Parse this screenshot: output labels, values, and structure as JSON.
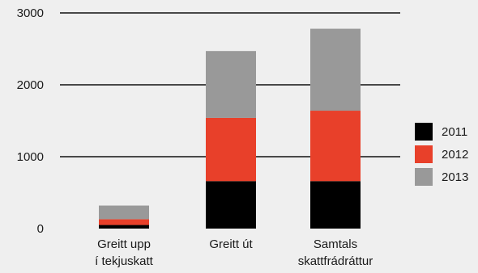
{
  "chart_data": {
    "type": "bar",
    "stacked": true,
    "categories": [
      [
        "Greitt upp",
        "í tekjuskatt"
      ],
      [
        "Greitt út"
      ],
      [
        "Samtals",
        "skattfrádráttur"
      ]
    ],
    "series": [
      {
        "name": "2011",
        "color": "#000000",
        "values": [
          50,
          660,
          660
        ]
      },
      {
        "name": "2012",
        "color": "#e8402a",
        "values": [
          80,
          880,
          980
        ]
      },
      {
        "name": "2013",
        "color": "#999999",
        "values": [
          190,
          930,
          1140
        ]
      }
    ],
    "ylim": [
      0,
      3000
    ],
    "yticks": [
      "0",
      "1000",
      "2000",
      "3000"
    ],
    "grid": true,
    "legend_position": "right"
  }
}
